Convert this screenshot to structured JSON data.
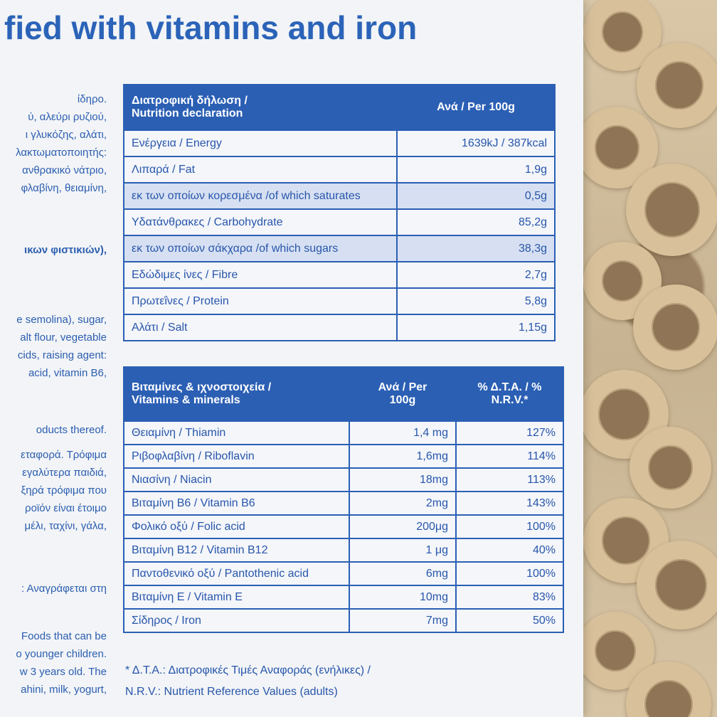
{
  "headline": "fied with vitamins and iron",
  "side_text": [
    {
      "text": "ίδηρο.",
      "bold": false
    },
    {
      "text": "ύ, αλεύρι ρυζιού,",
      "bold": false
    },
    {
      "text": "ι γλυκόζης, αλάτι,",
      "bold": false
    },
    {
      "text": "λακτωματοποιητής:",
      "bold": false
    },
    {
      "text": "ανθρακικό νάτριο,",
      "bold": false
    },
    {
      "text": "φλαβίνη, θειαμίνη,",
      "bold": false
    },
    {
      "text": "ικων φιστικιών),",
      "bold": true
    },
    {
      "text": "e semolina), sugar,",
      "bold": false
    },
    {
      "text": "alt flour, vegetable",
      "bold": false
    },
    {
      "text": "cids, raising agent:",
      "bold": false
    },
    {
      "text": "acid, vitamin B6,",
      "bold": false
    },
    {
      "text": "oducts thereof.",
      "bold": false
    },
    {
      "text": "εταφορά. Τρόφιμα",
      "bold": false
    },
    {
      "text": "εγαλύτερα παιδιά,",
      "bold": false
    },
    {
      "text": "ξηρά τρόφιμα που",
      "bold": false
    },
    {
      "text": "ροϊόν είναι έτοιμο",
      "bold": false
    },
    {
      "text": "μέλι, ταχίνι, γάλα,",
      "bold": false
    },
    {
      "text": ": Αναγράφεται στη",
      "bold": false
    },
    {
      "text": "Foods that can be",
      "bold": false
    },
    {
      "text": "o younger children.",
      "bold": false
    },
    {
      "text": "w 3 years old. The",
      "bold": false
    },
    {
      "text": "ahini, milk, yogurt,",
      "bold": false
    }
  ],
  "nutrition": {
    "header_label_gr": "Διατροφική δήλωση /",
    "header_label_en": "Nutrition declaration",
    "header_value": "Ανά / Per 100g",
    "rows": [
      {
        "label": "Ενέργεια / Energy",
        "value": "1639kJ / 387kcal",
        "shaded": false
      },
      {
        "label": "Λιπαρά / Fat",
        "value": "1,9g",
        "shaded": false
      },
      {
        "label": "εκ των οποίων κορεσμένα /of which saturates",
        "value": "0,5g",
        "shaded": true
      },
      {
        "label": "Υδατάνθρακες  / Carbohydrate",
        "value": "85,2g",
        "shaded": false
      },
      {
        "label": "εκ των οποίων σάκχαρα /of which sugars",
        "value": "38,3g",
        "shaded": true
      },
      {
        "label": "Εδώδιμες ίνες / Fibre",
        "value": "2,7g",
        "shaded": false
      },
      {
        "label": "Πρωτεΐνες / Protein",
        "value": "5,8g",
        "shaded": false
      },
      {
        "label": "Αλάτι / Salt",
        "value": "1,15g",
        "shaded": false
      }
    ]
  },
  "vitamins": {
    "header_label_gr": "Βιταμίνες & ιχνοστοιχεία /",
    "header_label_en": "Vitamins & minerals",
    "header_per_line1": "Ανά / Per",
    "header_per_line2": "100g",
    "header_nrv_line1": "% Δ.Τ.Α. / %",
    "header_nrv_line2": "N.R.V.*",
    "rows": [
      {
        "label": "Θειαμίνη / Thiamin",
        "value": "1,4 mg",
        "nrv": "127%"
      },
      {
        "label": "Ριβοφλαβίνη / Riboflavin",
        "value": "1,6mg",
        "nrv": "114%"
      },
      {
        "label": "Νιασίνη / Niacin",
        "value": "18mg",
        "nrv": "113%"
      },
      {
        "label": "Βιταμίνη Β6 / Vitamin B6",
        "value": "2mg",
        "nrv": "143%"
      },
      {
        "label": "Φολικό οξύ / Folic acid",
        "value": "200μg",
        "nrv": "100%"
      },
      {
        "label": "Βιταμίνη Β12 / Vitamin B12",
        "value": "1 μg",
        "nrv": "40%"
      },
      {
        "label": "Παντοθενικό οξύ / Pantothenic acid",
        "value": "6mg",
        "nrv": "100%"
      },
      {
        "label": "Βιταμίνη Ε / Vitamin E",
        "value": "10mg",
        "nrv": "83%"
      },
      {
        "label": "Σίδηρος / Iron",
        "value": "7mg",
        "nrv": "50%"
      }
    ]
  },
  "footnote": {
    "line1": "* Δ.Τ.Α.: Διατροφικές Τιμές Αναφοράς (ενήλικες) /",
    "line2": "N.R.V.: Nutrient Reference Values (adults)"
  }
}
